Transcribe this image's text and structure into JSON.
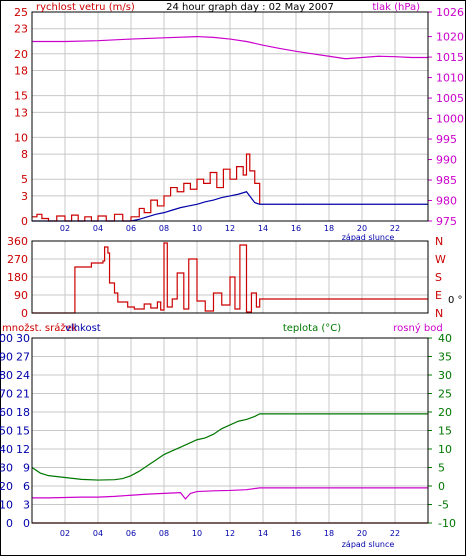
{
  "title": "24 hour graph day : 02 May 2007",
  "sunset_label": "západ slunce",
  "x_tick_labels": [
    "02",
    "04",
    "06",
    "08",
    "10",
    "12",
    "14",
    "16",
    "18",
    "20",
    "22"
  ],
  "colors": {
    "wind": "#cc0000",
    "pressure": "#cc00cc",
    "wind_avg": "#0000aa",
    "direction": "#cc0000",
    "temperature": "#007700",
    "dewpoint": "#cc00cc",
    "humidity": "#0000aa",
    "rain": "#cc0000",
    "grid": "#c8c8c8",
    "frame": "#000000"
  },
  "chart_data": [
    {
      "type": "line",
      "panel": "wind-pressure",
      "left_axis_label": "rychlost vetru (m/s)",
      "right_axis_label": "tlak (hPa)",
      "left_ylim": [
        0,
        25
      ],
      "left_ticks": [
        0,
        3,
        5,
        8,
        10,
        13,
        15,
        18,
        20,
        23,
        25
      ],
      "right_ylim": [
        975,
        1026
      ],
      "right_ticks": [
        975,
        980,
        985,
        990,
        995,
        1000,
        1005,
        1010,
        1015,
        1020,
        1026
      ],
      "xlim": [
        0,
        24
      ],
      "series": [
        {
          "key": "pressure",
          "axis": "right",
          "x": [
            0,
            2,
            4,
            6,
            8,
            10,
            11,
            12,
            13,
            14,
            15,
            16,
            17,
            18,
            19,
            20,
            21,
            22,
            23,
            24
          ],
          "values": [
            1018.8,
            1018.8,
            1019.0,
            1019.4,
            1019.7,
            1020.0,
            1019.8,
            1019.4,
            1018.8,
            1017.9,
            1017.1,
            1016.4,
            1015.8,
            1015.2,
            1014.6,
            1014.9,
            1015.2,
            1015.1,
            1014.9,
            1014.9
          ]
        },
        {
          "key": "wind",
          "axis": "left",
          "x": [
            0,
            0.3,
            0.6,
            1.0,
            1.5,
            2.0,
            2.4,
            2.8,
            3.2,
            3.6,
            4.0,
            4.5,
            5.0,
            5.5,
            6.0,
            6.5,
            6.8,
            7.2,
            7.6,
            8.0,
            8.4,
            8.8,
            9.2,
            9.6,
            10.0,
            10.4,
            10.8,
            11.2,
            11.6,
            12.0,
            12.4,
            12.8,
            13.0,
            13.2,
            13.5,
            13.8
          ],
          "values": [
            0.5,
            0.8,
            0.3,
            0.0,
            0.6,
            0.0,
            0.7,
            0.0,
            0.5,
            0.0,
            0.6,
            0.0,
            0.8,
            0.0,
            0.5,
            1.5,
            1.0,
            2.5,
            1.8,
            3.0,
            4.0,
            3.5,
            4.5,
            3.8,
            5.0,
            4.5,
            5.8,
            4.0,
            6.2,
            5.0,
            6.5,
            5.5,
            8.0,
            6.0,
            4.5,
            2.0
          ]
        },
        {
          "key": "wind_avg",
          "axis": "left",
          "x": [
            0,
            6.0,
            6.5,
            7.0,
            7.5,
            8.0,
            8.5,
            9.0,
            9.5,
            10.0,
            10.5,
            11.0,
            11.5,
            12.0,
            12.5,
            13.0,
            13.5,
            13.8,
            24
          ],
          "values": [
            0,
            0,
            0.2,
            0.5,
            0.8,
            1.0,
            1.3,
            1.6,
            1.8,
            2.0,
            2.3,
            2.5,
            2.8,
            3.0,
            3.2,
            3.5,
            2.2,
            2.0,
            2.0
          ]
        }
      ]
    },
    {
      "type": "line",
      "panel": "wind-direction",
      "left_ylim": [
        0,
        360
      ],
      "left_ticks": [
        0,
        90,
        180,
        270,
        360
      ],
      "right_ticks": [
        "N",
        "W",
        "S",
        "E",
        "N"
      ],
      "right_extra_label": "0 °",
      "xlim": [
        0,
        24
      ],
      "series": [
        {
          "key": "direction",
          "axis": "left",
          "x": [
            0,
            2.5,
            2.6,
            3.5,
            3.6,
            4.3,
            4.4,
            4.6,
            4.7,
            5.0,
            5.2,
            5.8,
            6.2,
            6.8,
            7.2,
            7.6,
            7.8,
            8.0,
            8.2,
            8.5,
            8.8,
            9.2,
            9.5,
            10.0,
            10.5,
            11.0,
            11.5,
            12.0,
            12.3,
            12.6,
            13.0,
            13.3,
            13.6,
            13.8,
            24
          ],
          "values": [
            0,
            0,
            230,
            230,
            250,
            260,
            330,
            300,
            150,
            100,
            55,
            30,
            20,
            45,
            25,
            55,
            15,
            350,
            30,
            70,
            200,
            20,
            270,
            60,
            10,
            100,
            40,
            180,
            20,
            340,
            5,
            100,
            30,
            70,
            70
          ]
        }
      ]
    },
    {
      "type": "line",
      "panel": "temperature-humidity",
      "left_axis_label": "množst. srážek",
      "left_axis_label_2": "vlhkost",
      "right_axis_label": "teplota (°C)",
      "right_axis_label_2": "rosný bod",
      "rain_ylim": [
        0,
        100
      ],
      "rain_ticks": [
        0,
        10,
        20,
        30,
        40,
        50,
        60,
        70,
        80,
        90,
        100
      ],
      "humidity_ylim": [
        0,
        30
      ],
      "humidity_ticks": [
        0,
        3,
        6,
        9,
        12,
        15,
        18,
        21,
        24,
        27,
        30
      ],
      "right_ylim": [
        -10,
        40
      ],
      "right_ticks": [
        -10,
        -5,
        0,
        5,
        10,
        15,
        20,
        25,
        30,
        35,
        40
      ],
      "xlim": [
        0,
        24
      ],
      "series": [
        {
          "key": "temperature",
          "axis": "right",
          "x": [
            0,
            0.5,
            1,
            2,
            3,
            4,
            5,
            5.5,
            6,
            6.5,
            7,
            7.5,
            8,
            8.5,
            9,
            9.5,
            10,
            10.5,
            11,
            11.5,
            12,
            12.5,
            13,
            13.5,
            13.8,
            24
          ],
          "values": [
            5.0,
            3.5,
            2.8,
            2.3,
            1.8,
            1.6,
            1.7,
            2.0,
            2.8,
            4.0,
            5.5,
            7.0,
            8.5,
            9.5,
            10.5,
            11.5,
            12.5,
            13.0,
            14.0,
            15.5,
            16.5,
            17.5,
            18.0,
            18.8,
            19.5,
            19.5
          ]
        },
        {
          "key": "dewpoint",
          "axis": "right",
          "x": [
            0,
            1,
            2,
            3,
            4,
            5,
            6,
            7,
            8,
            9,
            9.3,
            9.6,
            10,
            11,
            12,
            13,
            13.8,
            24
          ],
          "values": [
            -3.2,
            -3.2,
            -3.1,
            -3.0,
            -3.0,
            -2.8,
            -2.5,
            -2.2,
            -2.0,
            -1.8,
            -3.5,
            -2.0,
            -1.5,
            -1.3,
            -1.2,
            -1.0,
            -0.5,
            -0.5
          ]
        },
        {
          "key": "rain",
          "axis": "rain",
          "x": [
            0,
            24
          ],
          "values": [
            0,
            0
          ]
        }
      ]
    }
  ]
}
